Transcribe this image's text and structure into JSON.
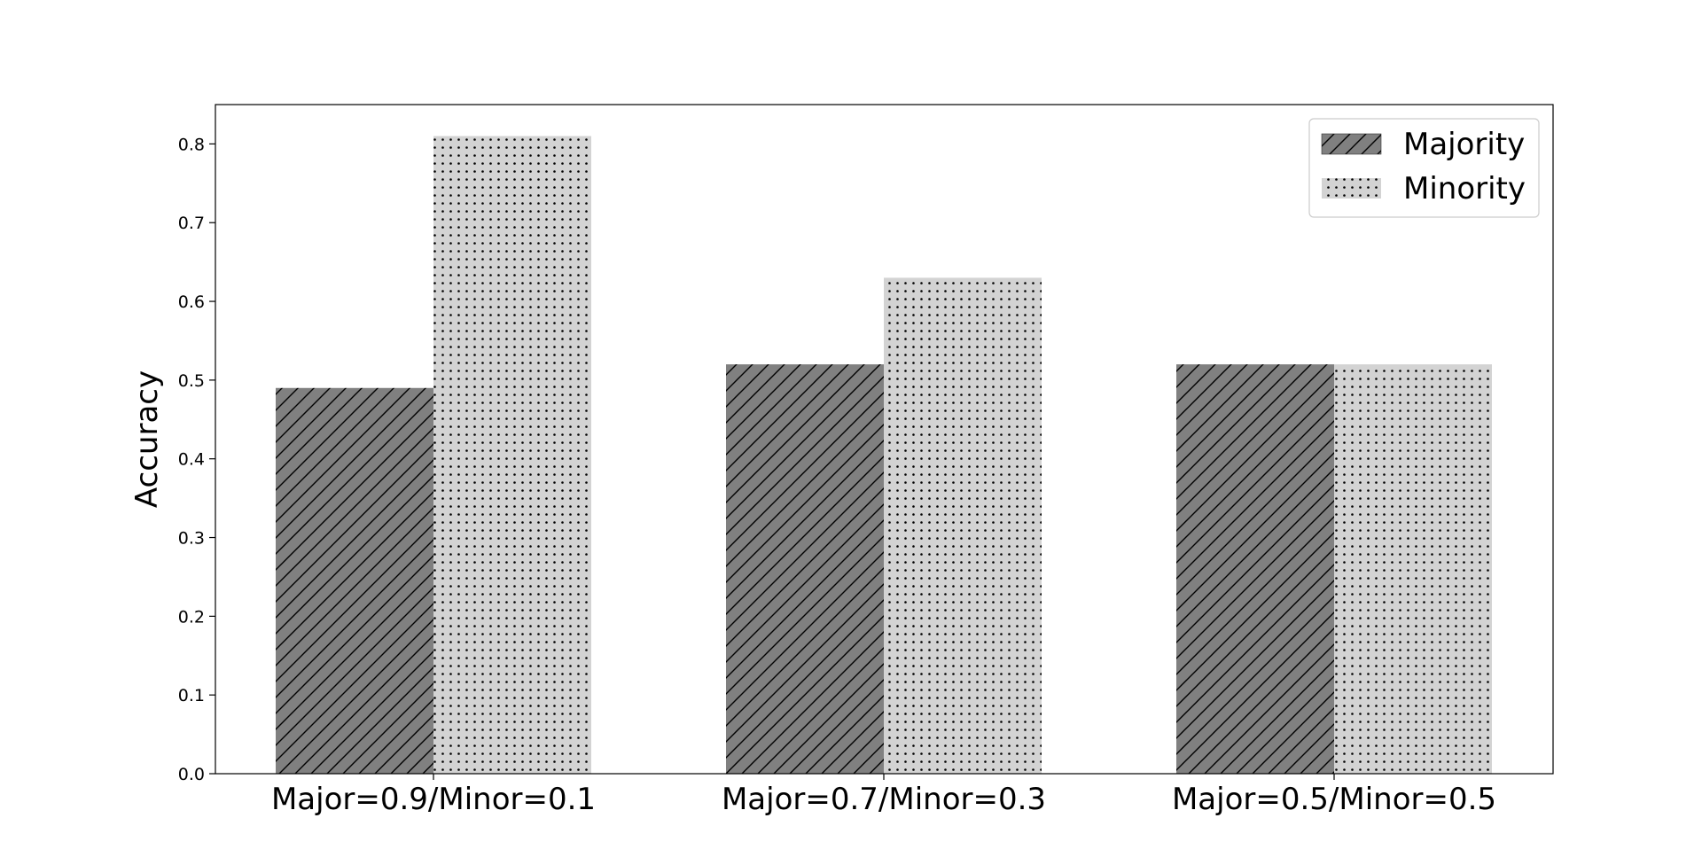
{
  "chart_data": {
    "type": "bar",
    "title": "",
    "xlabel": "",
    "ylabel": "Accuracy",
    "ylim": [
      0,
      0.85
    ],
    "yticks": [
      "0.0",
      "0.1",
      "0.2",
      "0.3",
      "0.4",
      "0.5",
      "0.6",
      "0.7",
      "0.8"
    ],
    "categories": [
      "Major=0.9/Minor=0.1",
      "Major=0.7/Minor=0.3",
      "Major=0.5/Minor=0.5"
    ],
    "series": [
      {
        "name": "Majority",
        "values": [
          0.49,
          0.52,
          0.52
        ],
        "color": "#808080",
        "pattern": "diagonal-hatch"
      },
      {
        "name": "Minority",
        "values": [
          0.81,
          0.63,
          0.52
        ],
        "color": "#d3d3d3",
        "pattern": "dots"
      }
    ],
    "legend": {
      "position": "top-right"
    },
    "grid": false
  }
}
